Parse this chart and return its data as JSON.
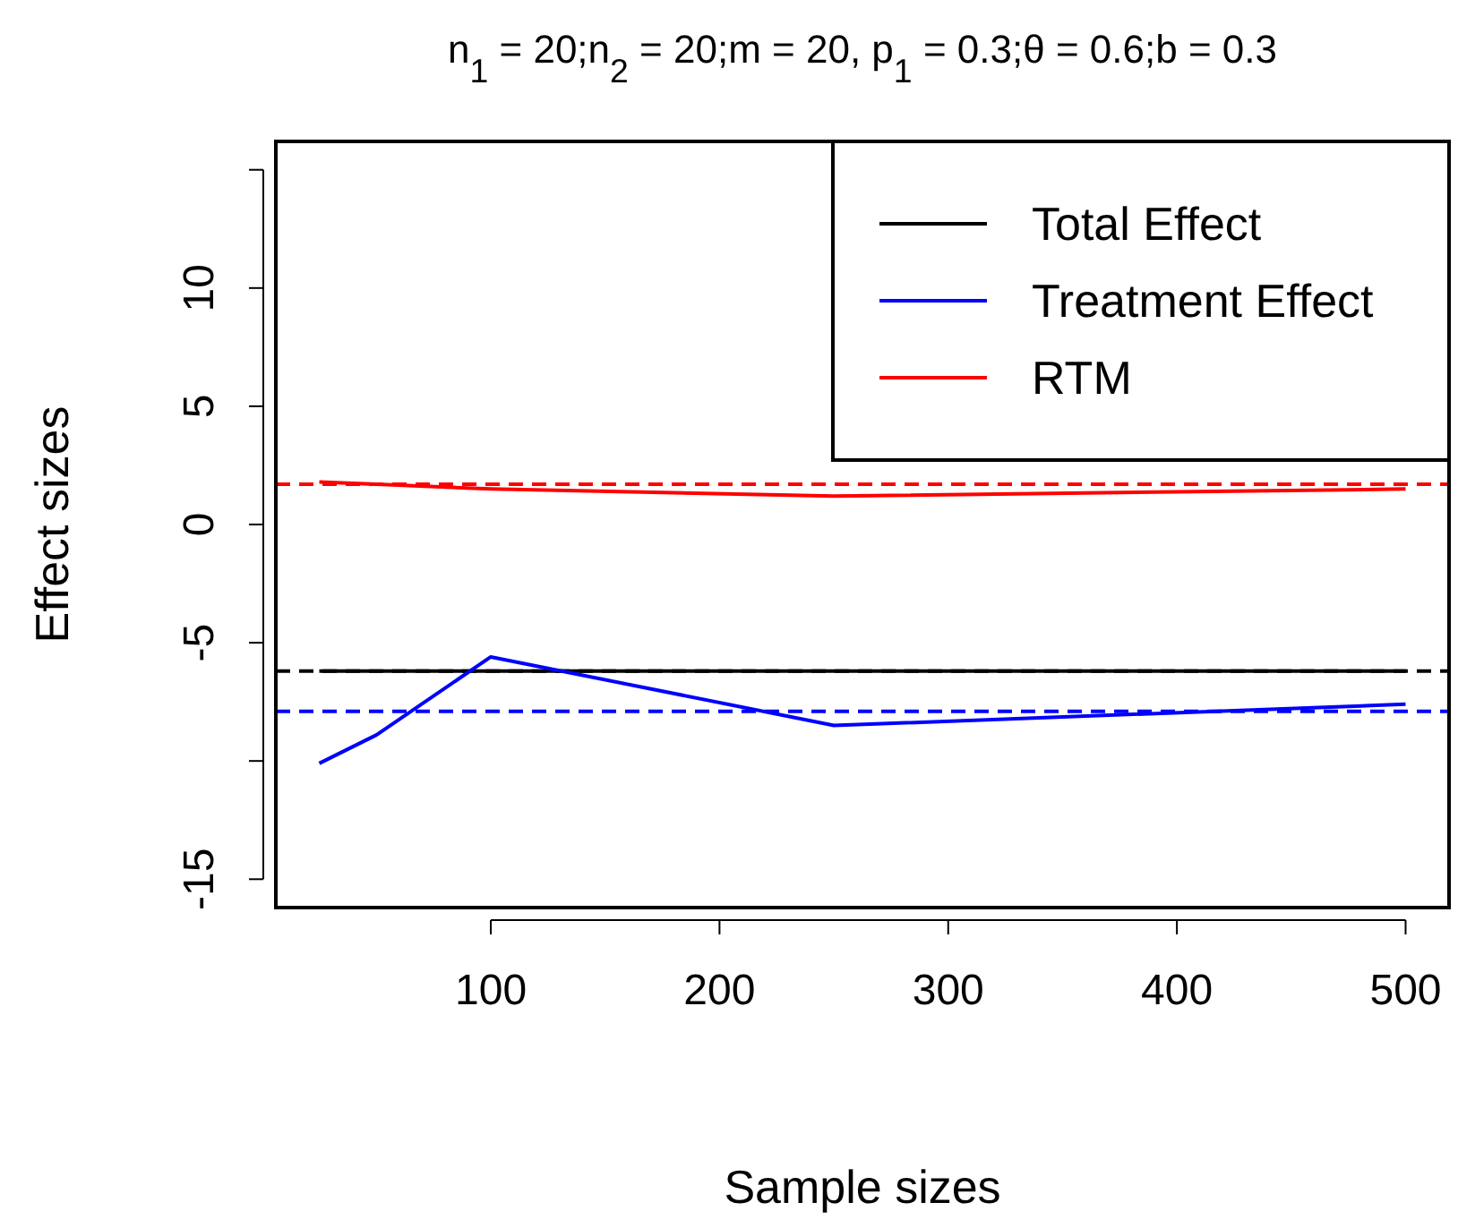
{
  "chart_data": {
    "type": "line",
    "title": "n$_{1}$ = 20;n$_{2}$ = 20;m = 20, p$_{1}$ = 0.3;θ = 0.6;b = 0.3",
    "xlabel": "Sample sizes",
    "ylabel": "Effect sizes",
    "x": [
      25,
      50,
      100,
      250,
      500
    ],
    "series": [
      {
        "name": "Total Effect",
        "color": "#000000",
        "values": [
          -6.2,
          -6.2,
          -6.2,
          -6.2,
          -6.2
        ]
      },
      {
        "name": "Treatment Effect",
        "color": "#0000ff",
        "values": [
          -10.1,
          -8.9,
          -5.6,
          -8.5,
          -7.6
        ]
      },
      {
        "name": "RTM",
        "color": "#ff0000",
        "values": [
          1.8,
          1.7,
          1.5,
          1.2,
          1.5
        ]
      }
    ],
    "ref_lines": [
      {
        "axis": "y",
        "value": -6.2,
        "color": "#000000",
        "line_style": "dashed"
      },
      {
        "axis": "y",
        "value": -7.9,
        "color": "#0000ff",
        "line_style": "dashed"
      },
      {
        "axis": "y",
        "value": 1.7,
        "color": "#ff0000",
        "line_style": "dashed"
      }
    ],
    "xlim": [
      6,
      519
    ],
    "xticks": [
      100,
      200,
      300,
      400,
      500
    ],
    "ylim": [
      -16.2,
      16.2
    ],
    "yticks": [
      {
        "value": -15,
        "label": "-15"
      },
      {
        "value": -10,
        "label": null
      },
      -5,
      0,
      5,
      10,
      {
        "value": 15,
        "label": null
      }
    ],
    "legend": "top right",
    "grid": false,
    "marker": "none",
    "line_style": "solid"
  }
}
